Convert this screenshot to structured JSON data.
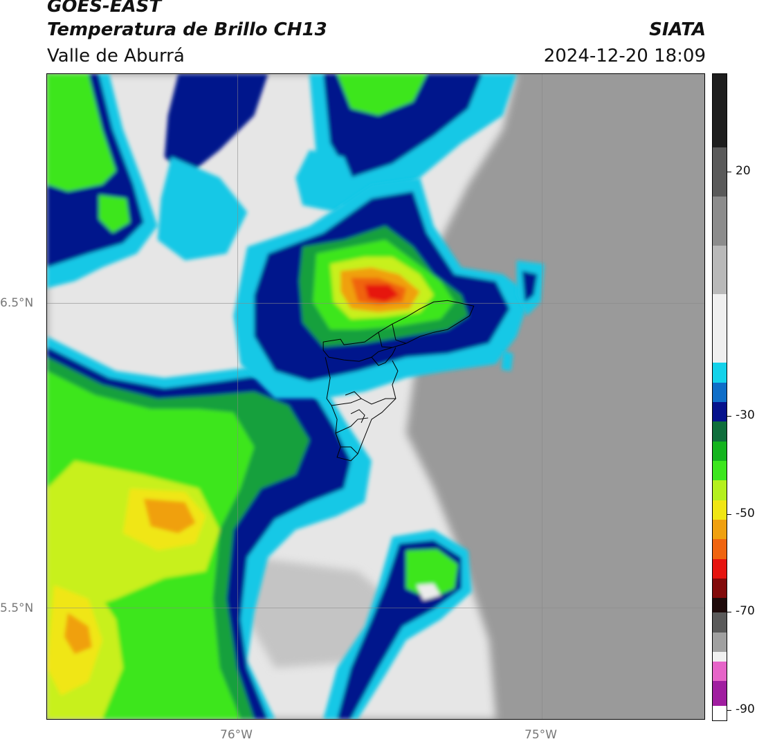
{
  "header": {
    "satellite": "GOES-EAST",
    "product": "Temperatura de Brillo CH13",
    "region": "Valle de Aburrá",
    "organization": "SIATA",
    "datetime": "2024-12-20 18:09"
  },
  "map": {
    "lat_labels": [
      {
        "value": 6.5,
        "text": "6.5°N"
      },
      {
        "value": 5.5,
        "text": "5.5°N"
      }
    ],
    "lon_labels": [
      {
        "value": -76.0,
        "text": "76°W"
      },
      {
        "value": -75.0,
        "text": "75°W"
      }
    ],
    "extent": {
      "lon_min": -76.625,
      "lon_max": -74.47,
      "lat_min": 5.09,
      "lat_max": 7.25
    },
    "colors": {
      "clear_sky": "#9a9a9a",
      "warm_cloud": "#ececec",
      "cold_cloud_cyan": "#14c8e6",
      "cold_cloud_blue": "#0a2a8c",
      "cold_cloud_green": "#39e61e",
      "cold_cloud_yellow": "#f0e61e",
      "cold_cloud_orange": "#f07814",
      "cold_cloud_red": "#f01e14"
    }
  },
  "colorbar": {
    "min": -92,
    "max": 40,
    "ticks": [
      {
        "value": 20,
        "text": "20"
      },
      {
        "value": -30,
        "text": "-30"
      },
      {
        "value": -50,
        "text": "-50"
      },
      {
        "value": -70,
        "text": "-70"
      },
      {
        "value": -90,
        "text": "-90"
      }
    ],
    "stops": [
      {
        "from": 40,
        "to": 25,
        "color": "#1e1e1e"
      },
      {
        "from": 25,
        "to": 15,
        "color": "#5a5a5a"
      },
      {
        "from": 15,
        "to": 5,
        "color": "#8c8c8c"
      },
      {
        "from": 5,
        "to": -5,
        "color": "#b9b9b9"
      },
      {
        "from": -5,
        "to": -19,
        "color": "#f0f0f0"
      },
      {
        "from": -19,
        "to": -23,
        "color": "#14d2ea"
      },
      {
        "from": -23,
        "to": -27,
        "color": "#0f6ec8"
      },
      {
        "from": -27,
        "to": -31,
        "color": "#06128c"
      },
      {
        "from": -31,
        "to": -35,
        "color": "#0f6e3c"
      },
      {
        "from": -35,
        "to": -39,
        "color": "#14b41e"
      },
      {
        "from": -39,
        "to": -43,
        "color": "#3ce61e"
      },
      {
        "from": -43,
        "to": -47,
        "color": "#b4f01e"
      },
      {
        "from": -47,
        "to": -51,
        "color": "#f0e614"
      },
      {
        "from": -51,
        "to": -55,
        "color": "#f0a00f"
      },
      {
        "from": -55,
        "to": -59,
        "color": "#f0640f"
      },
      {
        "from": -59,
        "to": -63,
        "color": "#e6140f"
      },
      {
        "from": -63,
        "to": -67,
        "color": "#820a0a"
      },
      {
        "from": -67,
        "to": -70,
        "color": "#1e0a0a"
      },
      {
        "from": -70,
        "to": -74,
        "color": "#5a5a5a"
      },
      {
        "from": -74,
        "to": -78,
        "color": "#a0a0a0"
      },
      {
        "from": -78,
        "to": -80,
        "color": "#f0f0f0"
      },
      {
        "from": -80,
        "to": -84,
        "color": "#e664c8"
      },
      {
        "from": -84,
        "to": -89,
        "color": "#a01ea0"
      },
      {
        "from": -89,
        "to": -92,
        "color": "#ffffff"
      }
    ]
  }
}
